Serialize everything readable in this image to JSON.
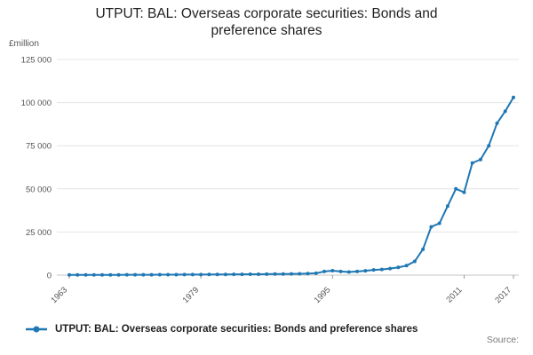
{
  "title": "UTPUT: BAL: Overseas corporate securities: Bonds and preference shares",
  "unit_label": "£million",
  "source_label": "Source:",
  "legend": {
    "label": "UTPUT: BAL: Overseas corporate securities: Bonds and preference shares"
  },
  "colors": {
    "line": "#1f77b4",
    "grid": "#e4e4e4",
    "axis_line": "#c4c4c4",
    "axis_text": "#555555",
    "tick": "#999999"
  },
  "chart_data": {
    "type": "line",
    "title": "UTPUT: BAL: Overseas corporate securities: Bonds and preference shares",
    "xlabel": "",
    "ylabel": "£million",
    "ylim": [
      0,
      125000
    ],
    "yticks": [
      0,
      25000,
      50000,
      75000,
      100000,
      125000
    ],
    "ytick_labels": [
      "0",
      "25 000",
      "50 000",
      "75 000",
      "100 000",
      "125 000"
    ],
    "xticks": [
      1963,
      1979,
      1995,
      2011,
      2017
    ],
    "xtick_labels": [
      "1963",
      "1979",
      "1995",
      "2011",
      "2017"
    ],
    "grid": true,
    "marker": "circle",
    "legend_position": "bottom",
    "x": [
      1963,
      1964,
      1965,
      1966,
      1967,
      1968,
      1969,
      1970,
      1971,
      1972,
      1973,
      1974,
      1975,
      1976,
      1977,
      1978,
      1979,
      1980,
      1981,
      1982,
      1983,
      1984,
      1985,
      1986,
      1987,
      1988,
      1989,
      1990,
      1991,
      1992,
      1993,
      1994,
      1995,
      1996,
      1997,
      1998,
      1999,
      2000,
      2001,
      2002,
      2003,
      2004,
      2005,
      2006,
      2007,
      2008,
      2009,
      2010,
      2011,
      2012,
      2013,
      2014,
      2015,
      2016,
      2017
    ],
    "values": [
      100,
      110,
      120,
      130,
      140,
      150,
      160,
      170,
      180,
      200,
      220,
      240,
      260,
      280,
      300,
      320,
      340,
      360,
      380,
      400,
      430,
      460,
      500,
      540,
      580,
      620,
      660,
      700,
      800,
      900,
      1100,
      2100,
      2600,
      2100,
      1800,
      2100,
      2500,
      3000,
      3300,
      3800,
      4500,
      5500,
      8000,
      15000,
      28000,
      30000,
      40000,
      50000,
      48000,
      65000,
      67000,
      75000,
      88000,
      95000,
      103000
    ]
  }
}
